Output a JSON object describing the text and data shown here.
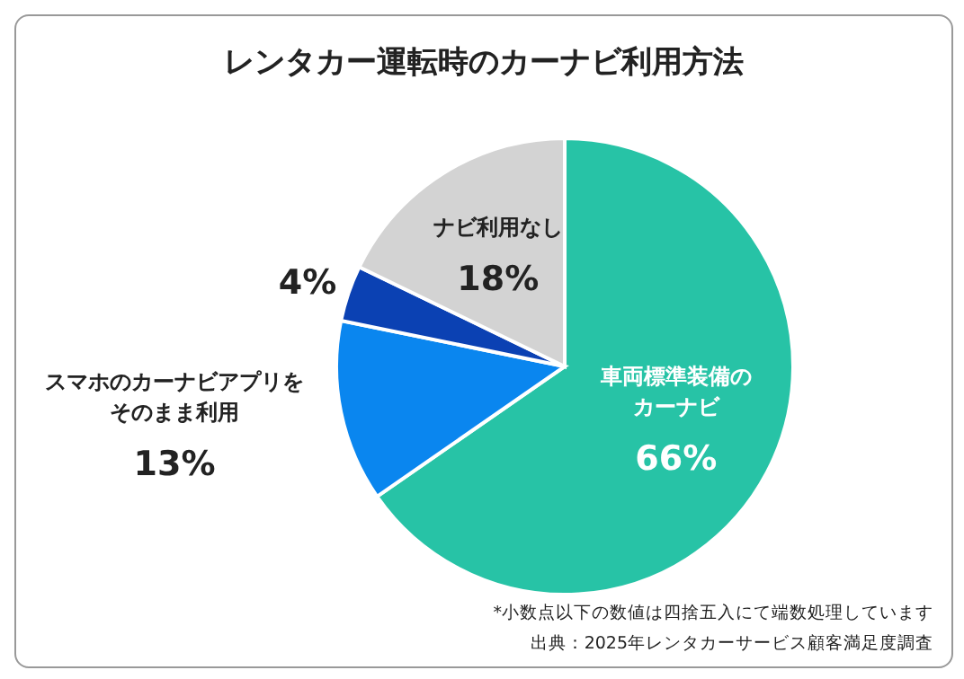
{
  "chart_data": {
    "type": "pie",
    "title": "レンタカー運転時のカーナビ利用方法",
    "categories": [
      "車両標準装備のカーナビ",
      "スマホのカーナビアプリをそのまま利用",
      null,
      "ナビ利用なし"
    ],
    "values": [
      66,
      13,
      4,
      18
    ],
    "value_labels": [
      "66%",
      "13%",
      "4%",
      "18%"
    ],
    "colors": [
      "#27c3a6",
      "#0a86ef",
      "#0b41b3",
      "#d3d3d3"
    ],
    "legend": false,
    "annotations": [
      "*小数点以下の数値は四捨五入にて端数処理しています",
      "出典：2025年レンタカーサービス顧客満足度調査"
    ]
  }
}
